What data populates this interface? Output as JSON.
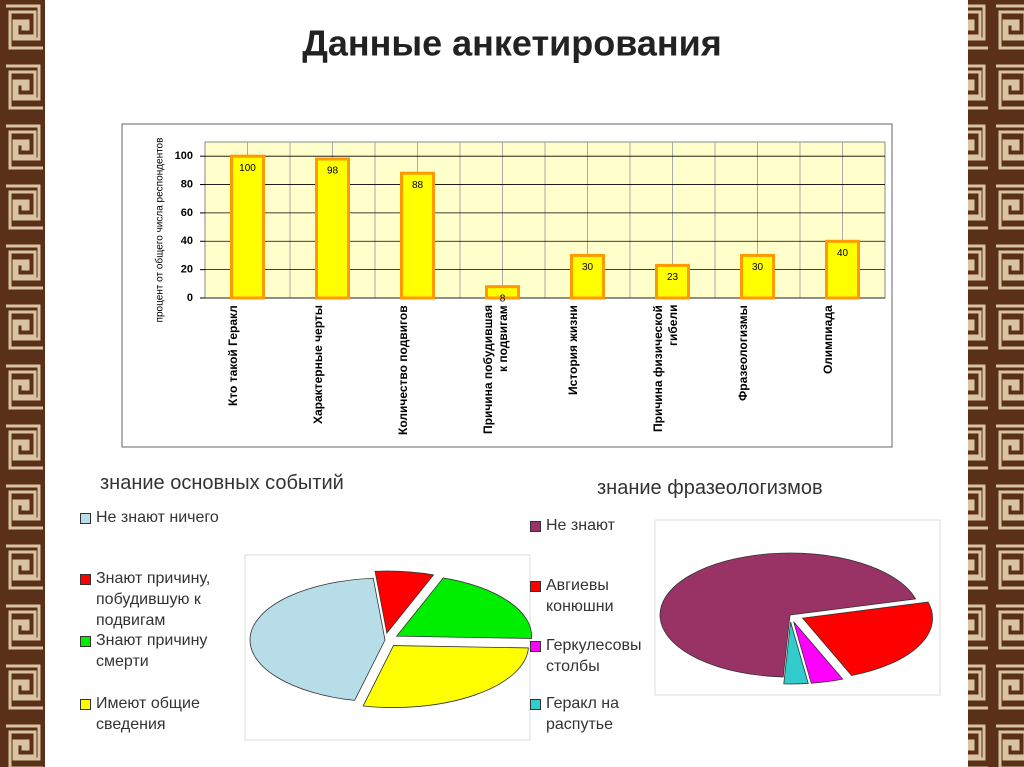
{
  "title": "Данные анкетирования",
  "chart_data": [
    {
      "type": "bar",
      "y_label": "процент от общего числа респондентов",
      "categories": [
        "Кто такой Геракл",
        "Характерные черты",
        "Количество подвигов",
        "Причина побудившая к подвигам",
        "История жизни",
        "Причина физической гибели",
        "Фразеологизмы",
        "Олимпиада"
      ],
      "values": [
        100,
        98,
        88,
        8,
        30,
        23,
        30,
        40
      ],
      "color": "#ffff00",
      "edge_color": "#ff9900",
      "ylim": [
        0,
        110
      ],
      "yticks": [
        0,
        20,
        40,
        60,
        80,
        100
      ],
      "grid": true
    },
    {
      "type": "pie",
      "title": "знание основных событий",
      "categories": [
        "Не знают ничего",
        "Знают причину, побудившую к подвигам",
        "Знают причину смерти",
        "Имеют общие сведения"
      ],
      "values": [
        45,
        7,
        20,
        28
      ],
      "colors": [
        "#b7dde8",
        "#ff0000",
        "#00ee00",
        "#ffff00"
      ]
    },
    {
      "type": "pie",
      "title": "знание фразеологизмов",
      "categories": [
        "Не знают",
        "Авгиевы конюшни",
        "Геркулесовы столбы",
        "Геракл на распутье"
      ],
      "values": [
        70,
        23,
        4,
        3
      ],
      "colors": [
        "#993366",
        "#ff0000",
        "#ff00ff",
        "#33cccc"
      ]
    }
  ]
}
